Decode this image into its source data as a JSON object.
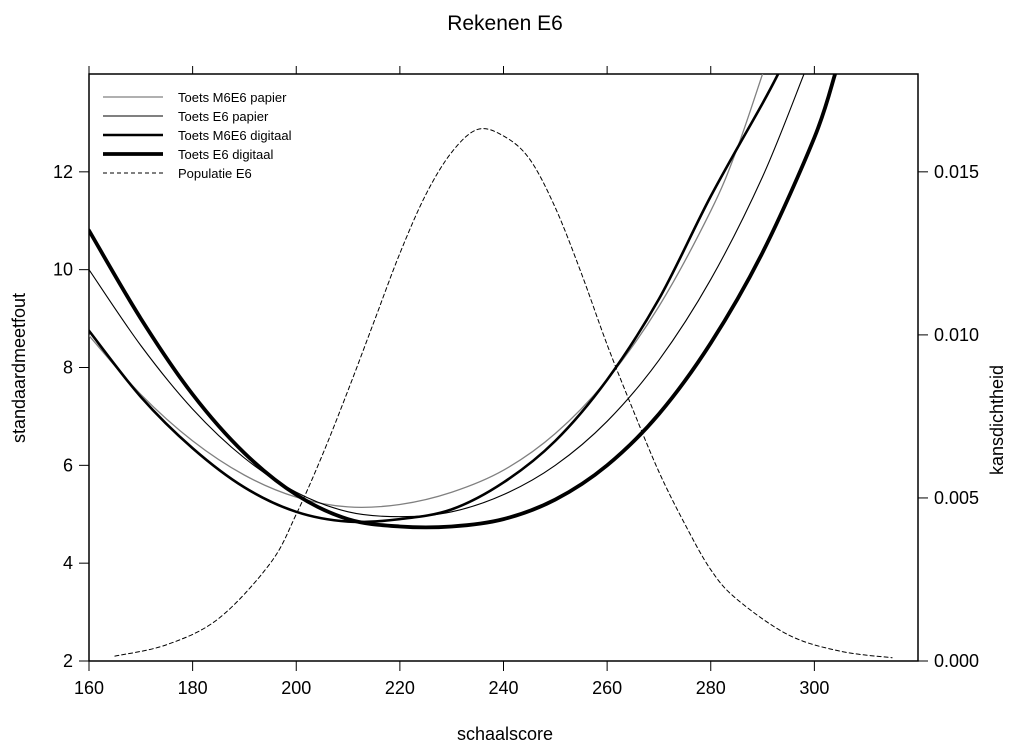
{
  "chart_data": {
    "type": "line",
    "title": "Rekenen E6",
    "xlabel": "schaalscore",
    "ylabel": "standaardmeetfout",
    "y2label": "kansdichtheid",
    "xlim": [
      160,
      320
    ],
    "ylim": [
      2,
      14
    ],
    "y2lim": [
      0,
      0.018
    ],
    "xticks": [
      160,
      180,
      200,
      220,
      240,
      260,
      280,
      300
    ],
    "xtick_labels": [
      "160",
      "180",
      "200",
      "220",
      "240",
      "260",
      "280",
      "300"
    ],
    "yticks": [
      2,
      4,
      6,
      8,
      10,
      12
    ],
    "ytick_labels": [
      "2",
      "4",
      "6",
      "8",
      "10",
      "12"
    ],
    "y2ticks": [
      0,
      0.005,
      0.01,
      0.015
    ],
    "y2tick_labels": [
      "0.000",
      "0.005",
      "0.010",
      "0.015"
    ],
    "grid": false,
    "legend_position": "top-left",
    "series": [
      {
        "name": "Toets M6E6 papier",
        "axis": "left",
        "color": "#808080",
        "x": [
          160,
          170,
          180,
          190,
          200,
          210,
          220,
          230,
          240,
          250,
          260,
          270,
          280,
          285,
          290
        ],
        "y": [
          8.65,
          7.45,
          6.5,
          5.8,
          5.35,
          5.15,
          5.2,
          5.45,
          5.9,
          6.65,
          7.75,
          9.25,
          11.2,
          12.45,
          14.0
        ]
      },
      {
        "name": "Toets E6 papier",
        "axis": "left",
        "color": "#000000",
        "x": [
          160,
          170,
          180,
          190,
          200,
          210,
          220,
          230,
          240,
          250,
          260,
          270,
          280,
          290,
          298
        ],
        "y": [
          10.0,
          8.45,
          7.15,
          6.15,
          5.45,
          5.05,
          4.95,
          5.05,
          5.4,
          6.0,
          6.9,
          8.15,
          9.8,
          11.9,
          14.0
        ]
      },
      {
        "name": "Toets M6E6 digitaal",
        "axis": "left",
        "color": "#000000",
        "x": [
          160,
          170,
          180,
          190,
          200,
          210,
          220,
          230,
          240,
          250,
          260,
          270,
          280,
          290,
          293
        ],
        "y": [
          8.75,
          7.4,
          6.35,
          5.55,
          5.05,
          4.85,
          4.9,
          5.1,
          5.65,
          6.5,
          7.75,
          9.4,
          11.5,
          13.4,
          14.0
        ]
      },
      {
        "name": "Toets E6 digitaal",
        "axis": "left",
        "color": "#000000",
        "x": [
          160,
          170,
          180,
          190,
          200,
          210,
          220,
          230,
          240,
          250,
          260,
          270,
          280,
          290,
          300,
          304
        ],
        "y": [
          10.8,
          9.0,
          7.45,
          6.25,
          5.4,
          4.9,
          4.75,
          4.75,
          4.9,
          5.3,
          6.0,
          7.05,
          8.5,
          10.35,
          12.7,
          14.0
        ]
      },
      {
        "name": "Populatie E6",
        "axis": "right",
        "color": "#000000",
        "x": [
          165,
          175,
          185,
          195,
          200,
          205,
          210,
          215,
          220,
          225,
          230,
          235,
          240,
          245,
          250,
          255,
          260,
          265,
          270,
          275,
          280,
          285,
          295,
          305,
          315
        ],
        "y": [
          0.00015,
          0.0005,
          0.0013,
          0.003,
          0.0045,
          0.0063,
          0.0083,
          0.0104,
          0.0125,
          0.0143,
          0.0156,
          0.0163,
          0.0161,
          0.0154,
          0.0139,
          0.0119,
          0.0097,
          0.0077,
          0.0058,
          0.0042,
          0.0028,
          0.0019,
          0.0008,
          0.0003,
          0.0001
        ]
      }
    ]
  }
}
